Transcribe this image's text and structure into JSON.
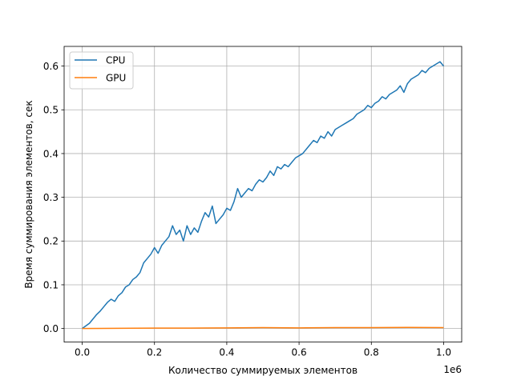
{
  "chart_data": {
    "type": "line",
    "title": "",
    "xlabel": "Количество суммируемых элементов",
    "ylabel": "Время суммирования элементов, сек",
    "x_offset_label": "1e6",
    "x_scale": 1000000,
    "xlim": [
      -50000,
      1050000
    ],
    "ylim": [
      -0.031,
      0.645
    ],
    "xticks": [
      0,
      200000,
      400000,
      600000,
      800000,
      1000000
    ],
    "xtick_labels": [
      "0.0",
      "0.2",
      "0.4",
      "0.6",
      "0.8",
      "1.0"
    ],
    "yticks": [
      0.0,
      0.1,
      0.2,
      0.3,
      0.4,
      0.5,
      0.6
    ],
    "ytick_labels": [
      "0.0",
      "0.1",
      "0.2",
      "0.3",
      "0.4",
      "0.5",
      "0.6"
    ],
    "grid": true,
    "legend_position": "top-left",
    "series": [
      {
        "name": "CPU",
        "color": "#1f77b4",
        "x": [
          0,
          20000,
          40000,
          50000,
          60000,
          70000,
          80000,
          90000,
          100000,
          110000,
          120000,
          130000,
          140000,
          150000,
          160000,
          170000,
          180000,
          190000,
          200000,
          210000,
          220000,
          230000,
          240000,
          250000,
          260000,
          270000,
          280000,
          290000,
          300000,
          310000,
          320000,
          330000,
          340000,
          350000,
          360000,
          370000,
          380000,
          390000,
          400000,
          410000,
          420000,
          430000,
          440000,
          450000,
          460000,
          470000,
          480000,
          490000,
          500000,
          510000,
          520000,
          530000,
          540000,
          550000,
          560000,
          570000,
          580000,
          590000,
          600000,
          610000,
          620000,
          630000,
          640000,
          650000,
          660000,
          670000,
          680000,
          690000,
          700000,
          710000,
          720000,
          730000,
          740000,
          750000,
          760000,
          770000,
          780000,
          790000,
          800000,
          810000,
          820000,
          830000,
          840000,
          850000,
          860000,
          870000,
          880000,
          890000,
          900000,
          910000,
          920000,
          930000,
          940000,
          950000,
          960000,
          970000,
          980000,
          990000,
          1000000
        ],
        "y": [
          0.0,
          0.012,
          0.032,
          0.04,
          0.05,
          0.06,
          0.067,
          0.062,
          0.075,
          0.082,
          0.095,
          0.1,
          0.112,
          0.118,
          0.128,
          0.15,
          0.16,
          0.17,
          0.185,
          0.172,
          0.19,
          0.2,
          0.21,
          0.235,
          0.215,
          0.225,
          0.2,
          0.235,
          0.215,
          0.23,
          0.22,
          0.245,
          0.265,
          0.255,
          0.28,
          0.24,
          0.25,
          0.26,
          0.275,
          0.27,
          0.29,
          0.32,
          0.3,
          0.31,
          0.32,
          0.315,
          0.33,
          0.34,
          0.335,
          0.345,
          0.36,
          0.35,
          0.37,
          0.365,
          0.375,
          0.37,
          0.38,
          0.39,
          0.395,
          0.4,
          0.41,
          0.42,
          0.43,
          0.425,
          0.44,
          0.435,
          0.45,
          0.44,
          0.455,
          0.46,
          0.465,
          0.47,
          0.475,
          0.48,
          0.49,
          0.495,
          0.5,
          0.51,
          0.505,
          0.515,
          0.52,
          0.53,
          0.525,
          0.535,
          0.54,
          0.545,
          0.555,
          0.54,
          0.56,
          0.57,
          0.575,
          0.58,
          0.59,
          0.585,
          0.595,
          0.6,
          0.605,
          0.61,
          0.6
        ]
      },
      {
        "name": "GPU",
        "color": "#ff7f0e",
        "x": [
          0,
          100000,
          200000,
          300000,
          400000,
          500000,
          600000,
          700000,
          800000,
          900000,
          1000000
        ],
        "y": [
          0.0,
          0.0005,
          0.001,
          0.001,
          0.0015,
          0.002,
          0.0015,
          0.002,
          0.002,
          0.0025,
          0.002
        ]
      }
    ]
  }
}
